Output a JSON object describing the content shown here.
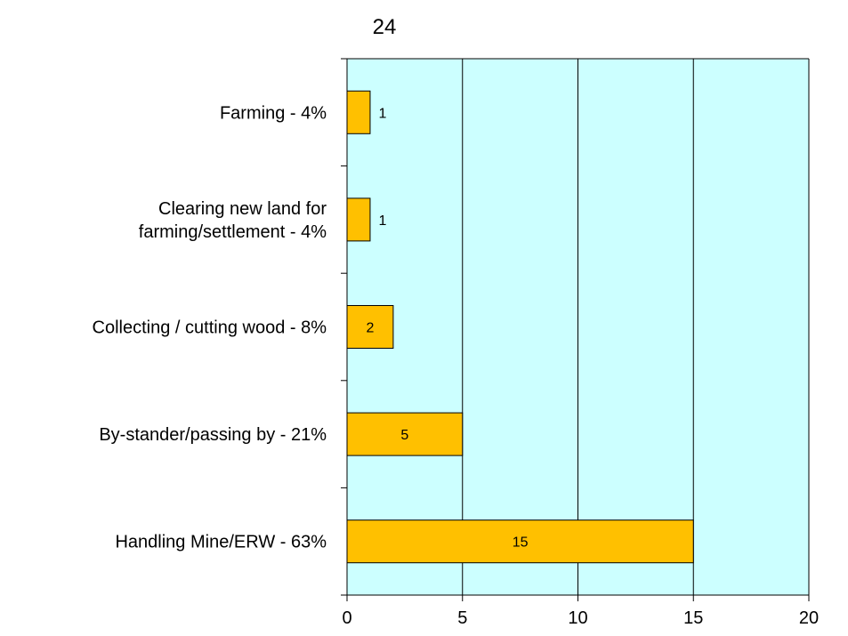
{
  "chart_data": {
    "type": "bar",
    "orientation": "horizontal",
    "title": "24",
    "xlabel": "",
    "ylabel": "",
    "xlim": [
      0,
      20
    ],
    "x_ticks": [
      0,
      5,
      10,
      15,
      20
    ],
    "x_tick_labels": [
      "0",
      "5",
      "10",
      "15",
      "20"
    ],
    "categories": [
      "Farming - 4%",
      "Clearing new land for farming/settlement - 4%",
      "Collecting / cutting wood - 8%",
      "By-stander/passing by - 21%",
      "Handling Mine/ERW - 63%"
    ],
    "category_lines": [
      [
        "Farming - 4%"
      ],
      [
        "Clearing new land for",
        "farming/settlement - 4%"
      ],
      [
        "Collecting / cutting wood - 8%"
      ],
      [
        "By-stander/passing by - 21%"
      ],
      [
        "Handling Mine/ERW - 63%"
      ]
    ],
    "values": [
      1,
      1,
      2,
      5,
      15
    ],
    "data_labels": [
      "1",
      "1",
      "2",
      "5",
      "15"
    ],
    "grid": true,
    "legend": "none",
    "colors": {
      "bar": "#FFC000",
      "plot_background": "#CCFFFF",
      "grid": "#000000",
      "axis": "#000000"
    }
  }
}
